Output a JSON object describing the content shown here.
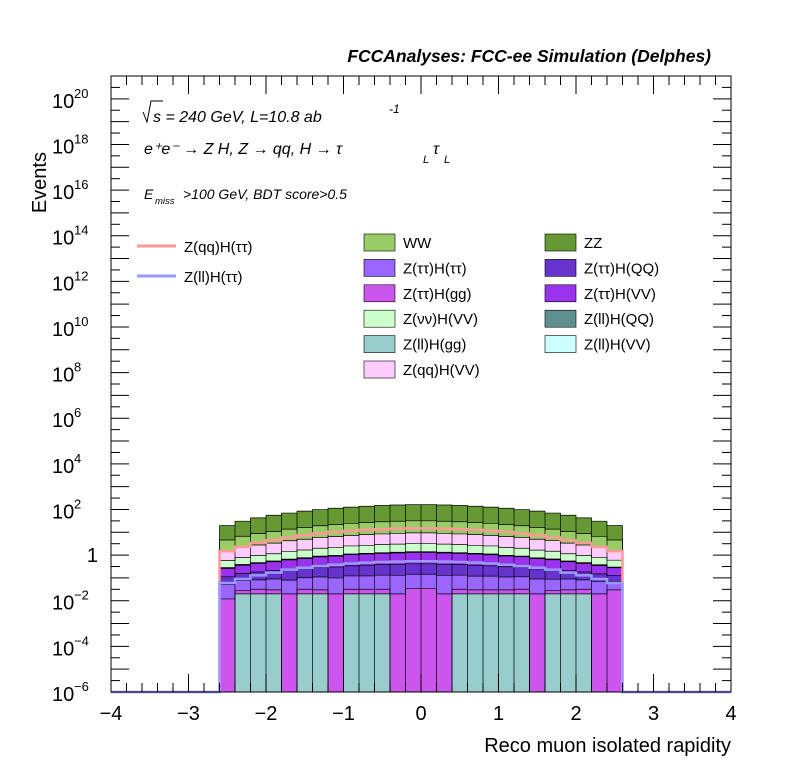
{
  "chart_data": {
    "type": "area",
    "title": "FCCAnalyses: FCC-ee Simulation (Delphes)",
    "xlabel": "Reco muon isolated rapidity",
    "ylabel": "Events",
    "xlim": [
      -4,
      4
    ],
    "ylim": [
      1e-06,
      1e+21
    ],
    "yscale": "log",
    "x_ticks": [
      "−4",
      "−3",
      "−2",
      "−1",
      "0",
      "1",
      "2",
      "3",
      "4"
    ],
    "y_tick_exponents": [
      "−6",
      "−4",
      "−2",
      "",
      "2",
      "4",
      "6",
      "8",
      "10",
      "12",
      "14",
      "16",
      "18",
      "20"
    ],
    "annotations": {
      "energy": "s = 240 GeV, L=10.8 ab",
      "energy_exp": "-1",
      "process": "e⁺e⁻ → Z H, Z → qq, H → τ",
      "process_sub": "L",
      "cut_prefix": "E",
      "cut_sub": "miss",
      "cut_text": ">100 GeV, BDT score>0.5"
    },
    "bin_edges": [
      -2.6,
      -2.4,
      -2.2,
      -2.0,
      -1.8,
      -1.6,
      -1.4,
      -1.2,
      -1.0,
      -0.8,
      -0.6,
      -0.4,
      -0.2,
      0.0,
      0.2,
      0.4,
      0.6,
      0.8,
      1.0,
      1.2,
      1.4,
      1.6,
      1.8,
      2.0,
      2.2,
      2.4,
      2.6
    ],
    "stack": [
      {
        "name": "Z(ll)H(gg)",
        "color": "#99cccc",
        "values": [
          1e-08,
          0.02,
          0.02,
          0.02,
          1e-08,
          0.02,
          0.02,
          1e-08,
          0.02,
          0.02,
          0.02,
          1e-08,
          1e-08,
          1e-08,
          1e-08,
          0.02,
          0.02,
          0.02,
          0.02,
          0.02,
          1e-08,
          0.02,
          0.02,
          0.02,
          1e-08,
          1e-08
        ]
      },
      {
        "name": "Z(ττ)H(gg)",
        "color": "#cc55ee",
        "values": [
          0.012,
          0.008,
          0.012,
          0.01,
          0.02,
          0.012,
          0.01,
          0.02,
          0.012,
          0.012,
          0.012,
          0.02,
          0.035,
          0.035,
          0.02,
          0.012,
          0.01,
          0.01,
          0.01,
          0.012,
          0.02,
          0.008,
          0.01,
          0.012,
          0.02,
          0.03
        ]
      },
      {
        "name": "Z(ττ)H(ττ)",
        "color": "#9966ff",
        "values": [
          0.04,
          0.05,
          0.05,
          0.06,
          0.06,
          0.07,
          0.08,
          0.08,
          0.09,
          0.09,
          0.1,
          0.11,
          0.11,
          0.11,
          0.11,
          0.1,
          0.09,
          0.09,
          0.08,
          0.08,
          0.07,
          0.06,
          0.06,
          0.05,
          0.05,
          0.04
        ]
      },
      {
        "name": "Z(ττ)H(QQ)",
        "color": "#6633cc",
        "values": [
          0.06,
          0.08,
          0.1,
          0.12,
          0.14,
          0.16,
          0.18,
          0.2,
          0.22,
          0.24,
          0.25,
          0.26,
          0.27,
          0.27,
          0.26,
          0.25,
          0.24,
          0.22,
          0.2,
          0.18,
          0.16,
          0.14,
          0.12,
          0.1,
          0.08,
          0.06
        ]
      },
      {
        "name": "Z(ττ)H(VV)",
        "color": "#9933ee",
        "values": [
          0.15,
          0.2,
          0.25,
          0.3,
          0.4,
          0.45,
          0.55,
          0.6,
          0.7,
          0.75,
          0.8,
          0.85,
          0.9,
          0.9,
          0.85,
          0.8,
          0.75,
          0.7,
          0.6,
          0.55,
          0.45,
          0.4,
          0.3,
          0.25,
          0.2,
          0.15
        ]
      },
      {
        "name": "Z(ll)H(QQ)",
        "color": "#5f9090",
        "values": [
          0.01,
          0.015,
          0.02,
          0.02,
          0.025,
          0.03,
          0.03,
          0.035,
          0.04,
          0.04,
          0.045,
          0.045,
          0.05,
          0.05,
          0.045,
          0.045,
          0.04,
          0.04,
          0.035,
          0.03,
          0.03,
          0.025,
          0.02,
          0.02,
          0.015,
          0.01
        ]
      },
      {
        "name": "Z(ll)H(VV)",
        "color": "#ccffff",
        "values": [
          0.01,
          0.015,
          0.02,
          0.02,
          0.025,
          0.03,
          0.03,
          0.035,
          0.04,
          0.04,
          0.045,
          0.045,
          0.05,
          0.05,
          0.045,
          0.045,
          0.04,
          0.04,
          0.035,
          0.03,
          0.03,
          0.025,
          0.02,
          0.02,
          0.015,
          0.01
        ]
      },
      {
        "name": "Z(νν)H(VV)",
        "color": "#ccffcc",
        "values": [
          0.3,
          0.4,
          0.5,
          0.6,
          0.8,
          0.9,
          1.1,
          1.2,
          1.4,
          1.5,
          1.6,
          1.7,
          1.8,
          1.8,
          1.7,
          1.6,
          1.5,
          1.4,
          1.2,
          1.1,
          0.9,
          0.8,
          0.6,
          0.5,
          0.4,
          0.3
        ]
      },
      {
        "name": "Z(qq)H(VV)",
        "color": "#ffccff",
        "values": [
          1,
          1.4,
          1.8,
          2.2,
          2.8,
          3.3,
          3.8,
          4.3,
          4.8,
          5.2,
          5.6,
          5.9,
          6.2,
          6.2,
          5.9,
          5.6,
          5.2,
          4.8,
          4.3,
          3.8,
          3.3,
          2.8,
          2.2,
          1.8,
          1.4,
          1
        ]
      },
      {
        "name": "WW",
        "color": "#99cc66",
        "values": [
          3,
          4.5,
          6,
          7.5,
          9.5,
          11.5,
          13.5,
          15.5,
          17.5,
          19,
          20.5,
          21.5,
          22.5,
          22.5,
          21.5,
          20.5,
          19,
          17.5,
          15.5,
          13.5,
          11.5,
          9.5,
          7.5,
          6,
          4.5,
          3
        ]
      },
      {
        "name": "ZZ",
        "color": "#669933",
        "values": [
          15,
          24,
          34,
          45,
          56,
          68,
          80,
          91,
          102,
          112,
          120,
          127,
          132,
          132,
          127,
          120,
          112,
          102,
          91,
          80,
          68,
          56,
          45,
          34,
          24,
          15
        ]
      }
    ],
    "lines": [
      {
        "name": "Z(qq)H(ττ)",
        "color": "#ff9999",
        "values": [
          1.5,
          2.3,
          3.4,
          4.5,
          6,
          7.4,
          8.9,
          10.3,
          11.6,
          12.7,
          13.6,
          14.4,
          14.9,
          14.9,
          14.4,
          13.6,
          12.7,
          11.6,
          10.3,
          8.9,
          7.4,
          6,
          4.5,
          3.4,
          2.3,
          1.5
        ]
      },
      {
        "name": "Z(ll)H(ττ)",
        "color": "#9999ff",
        "values": [
          0.06,
          0.09,
          0.13,
          0.17,
          0.23,
          0.28,
          0.33,
          0.38,
          0.43,
          0.47,
          0.5,
          0.52,
          0.54,
          0.54,
          0.52,
          0.5,
          0.47,
          0.43,
          0.38,
          0.33,
          0.28,
          0.23,
          0.17,
          0.13,
          0.09,
          0.06
        ]
      }
    ],
    "legend": {
      "placement": "top",
      "line_entries": [
        "Z(qq)H(ττ)",
        "Z(ll)H(ττ)"
      ],
      "fill_entries": [
        "WW",
        "ZZ",
        "Z(ττ)H(ττ)",
        "Z(ττ)H(QQ)",
        "Z(ττ)H(gg)",
        "Z(ττ)H(VV)",
        "Z(νν)H(VV)",
        "Z(ll)H(QQ)",
        "Z(ll)H(gg)",
        "Z(ll)H(VV)",
        "Z(qq)H(VV)"
      ]
    }
  },
  "colors": {
    "WW": "#99cc66",
    "ZZ": "#669933",
    "Z(ττ)H(ττ)": "#9966ff",
    "Z(ττ)H(QQ)": "#6633cc",
    "Z(ττ)H(gg)": "#cc55ee",
    "Z(ττ)H(VV)": "#9933ee",
    "Z(νν)H(VV)": "#ccffcc",
    "Z(ll)H(QQ)": "#5f9090",
    "Z(ll)H(gg)": "#99cccc",
    "Z(ll)H(VV)": "#ccffff",
    "Z(qq)H(VV)": "#ffccff",
    "Z(qq)H(ττ)": "#ff9999",
    "Z(ll)H(ττ)": "#9999ff"
  }
}
